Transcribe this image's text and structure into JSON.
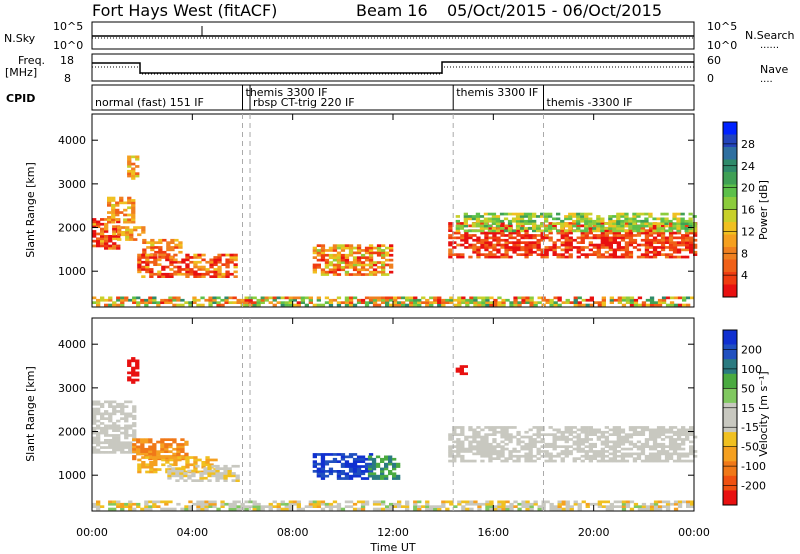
{
  "header": {
    "station": "Fort Hays West (fitACF)",
    "beam": "Beam 16",
    "date_range": "05/Oct/2015 - 06/Oct/2015"
  },
  "summary_panels": {
    "nsky": {
      "label": "N.Sky",
      "left_ticks": [
        "10^5",
        "10^0"
      ],
      "right_ticks": [
        "10^5",
        "10^0"
      ],
      "right_label": "N.Search",
      "right_legend": "......"
    },
    "freq": {
      "label_line1": "Freq.",
      "label_line2": "[MHz]",
      "left_ticks": [
        "18",
        "8"
      ],
      "right_ticks": [
        "60",
        "0"
      ],
      "right_label": "Nave",
      "right_legend": "...."
    },
    "cpid": {
      "label": "CPID",
      "segments": [
        {
          "text": "normal (fast) 151 IF",
          "start_hour": 0.0,
          "row": 1
        },
        {
          "text": "themis 3300 IF",
          "start_hour": 6.0,
          "row": 0
        },
        {
          "text": "rbsp CT-trig 220 IF",
          "start_hour": 6.3,
          "row": 1
        },
        {
          "text": "themis 3300 IF",
          "start_hour": 14.4,
          "row": 0
        },
        {
          "text": "themis -3300 IF",
          "start_hour": 18.0,
          "row": 1
        }
      ]
    }
  },
  "axes": {
    "ylabel": "Slant Range [km]",
    "yticks": [
      "4000",
      "3000",
      "2000",
      "1000"
    ],
    "xlabel": "Time UT",
    "xticks": [
      "00:00",
      "04:00",
      "08:00",
      "12:00",
      "16:00",
      "20:00",
      "00:00"
    ]
  },
  "colorbars": {
    "power": {
      "label": "Power [dB]",
      "ticks": [
        "28",
        "24",
        "20",
        "16",
        "12",
        "8",
        "4"
      ],
      "colors": [
        "#0022ff",
        "#2244bb",
        "#2e6fa0",
        "#2e8a6a",
        "#3fa055",
        "#5cc04a",
        "#8ccc3c",
        "#c8d02a",
        "#f0c020",
        "#f5a020",
        "#f08020",
        "#f06018",
        "#f03c10",
        "#e81010"
      ]
    },
    "velocity": {
      "label": "Velocity [m s⁻¹]",
      "ticks": [
        "200",
        "100",
        "50",
        "15",
        "-15",
        "-50",
        "-100",
        "-200"
      ],
      "colors": [
        "#1030d0",
        "#2050c0",
        "#2a7a80",
        "#4aaa40",
        "#80c860",
        "#c8c8c0",
        "#c8c8c0",
        "#f0c020",
        "#f5a020",
        "#f07818",
        "#f05010",
        "#e81010"
      ]
    }
  },
  "chart_data": [
    {
      "type": "heatmap",
      "title": "Power",
      "x_range_hours": [
        0,
        24
      ],
      "ylim_km": [
        180,
        4600
      ],
      "regions": [
        {
          "t0": 0.0,
          "t1": 1.0,
          "r0": 1500,
          "r1": 2200,
          "c0": 8,
          "c1": 16
        },
        {
          "t0": 0.6,
          "t1": 1.6,
          "r0": 2100,
          "r1": 2700,
          "c0": 7,
          "c1": 11
        },
        {
          "t0": 1.4,
          "t1": 1.8,
          "r0": 3100,
          "r1": 3600,
          "c0": 7,
          "c1": 11
        },
        {
          "t0": 1.0,
          "t1": 2.0,
          "r0": 1700,
          "r1": 2000,
          "c0": 7,
          "c1": 11
        },
        {
          "t0": 2.0,
          "t1": 3.6,
          "r0": 1300,
          "r1": 1700,
          "c0": 7,
          "c1": 13
        },
        {
          "t0": 1.8,
          "t1": 5.8,
          "r0": 850,
          "r1": 1350,
          "c0": 8,
          "c1": 14
        },
        {
          "t0": 8.8,
          "t1": 12.0,
          "r0": 900,
          "r1": 1600,
          "c0": 6,
          "c1": 13
        },
        {
          "t0": 14.2,
          "t1": 24.0,
          "r0": 1300,
          "r1": 2100,
          "c0": 10,
          "c1": 14
        },
        {
          "t0": 14.5,
          "t1": 24.0,
          "r0": 1900,
          "r1": 2300,
          "c0": 4,
          "c1": 8
        },
        {
          "t0": 0.0,
          "t1": 24.0,
          "r0": 200,
          "r1": 420,
          "c0": 3,
          "c1": 13
        }
      ]
    },
    {
      "type": "heatmap",
      "title": "Velocity",
      "x_range_hours": [
        0,
        24
      ],
      "ylim_km": [
        180,
        4600
      ],
      "regions": [
        {
          "t0": 0.0,
          "t1": 1.6,
          "r0": 1500,
          "r1": 2700,
          "c0": 5,
          "c1": 6
        },
        {
          "t0": 1.4,
          "t1": 1.8,
          "r0": 3100,
          "r1": 3700,
          "c0": 11,
          "c1": 11
        },
        {
          "t0": 1.6,
          "t1": 3.8,
          "r0": 1350,
          "r1": 1800,
          "c0": 8,
          "c1": 9
        },
        {
          "t0": 1.8,
          "t1": 5.0,
          "r0": 1050,
          "r1": 1400,
          "c0": 7,
          "c1": 8
        },
        {
          "t0": 3.0,
          "t1": 5.8,
          "r0": 850,
          "r1": 1200,
          "c0": 5,
          "c1": 7
        },
        {
          "t0": 8.8,
          "t1": 11.2,
          "r0": 900,
          "r1": 1500,
          "c0": 0,
          "c1": 1
        },
        {
          "t0": 11.0,
          "t1": 12.2,
          "r0": 900,
          "r1": 1400,
          "c0": 2,
          "c1": 3
        },
        {
          "t0": 14.2,
          "t1": 24.0,
          "r0": 1300,
          "r1": 2100,
          "c0": 5,
          "c1": 6
        },
        {
          "t0": 14.5,
          "t1": 14.9,
          "r0": 3300,
          "r1": 3500,
          "c0": 11,
          "c1": 11
        },
        {
          "t0": 0.0,
          "t1": 24.0,
          "r0": 200,
          "r1": 420,
          "c0": 4,
          "c1": 8
        }
      ]
    }
  ]
}
